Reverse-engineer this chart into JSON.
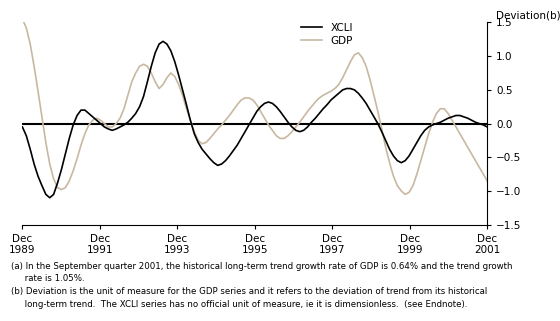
{
  "ylabel": "Deviation(b)",
  "footnote_a": "(a) In the September quarter 2001, the historical long-term trend growth rate of GDP is 0.64% and the trend growth\n     rate is 1.05%.",
  "footnote_b": "(b) Deviation is the unit of measure for the GDP series and it refers to the deviation of trend from its historical\n     long-term trend.  The XCLI series has no official unit of measure, ie it is dimensionless.  (see Endnote).",
  "ylim": [
    -1.5,
    1.5
  ],
  "xcli_color": "#000000",
  "gdp_color": "#c8b8a2",
  "background_color": "#ffffff",
  "xcli_data": [
    -0.05,
    -0.18,
    -0.38,
    -0.6,
    -0.78,
    -0.92,
    -1.05,
    -1.1,
    -1.05,
    -0.88,
    -0.68,
    -0.45,
    -0.22,
    -0.02,
    0.12,
    0.2,
    0.2,
    0.15,
    0.1,
    0.05,
    0.0,
    -0.05,
    -0.08,
    -0.1,
    -0.08,
    -0.05,
    -0.02,
    0.02,
    0.08,
    0.15,
    0.25,
    0.4,
    0.62,
    0.85,
    1.05,
    1.18,
    1.22,
    1.18,
    1.08,
    0.92,
    0.72,
    0.5,
    0.28,
    0.05,
    -0.15,
    -0.28,
    -0.38,
    -0.45,
    -0.52,
    -0.58,
    -0.62,
    -0.6,
    -0.55,
    -0.48,
    -0.4,
    -0.32,
    -0.22,
    -0.12,
    -0.02,
    0.08,
    0.18,
    0.25,
    0.3,
    0.32,
    0.3,
    0.25,
    0.18,
    0.1,
    0.02,
    -0.05,
    -0.1,
    -0.12,
    -0.1,
    -0.05,
    0.02,
    0.08,
    0.15,
    0.22,
    0.28,
    0.35,
    0.4,
    0.45,
    0.5,
    0.52,
    0.52,
    0.5,
    0.45,
    0.38,
    0.3,
    0.2,
    0.1,
    0.0,
    -0.12,
    -0.25,
    -0.38,
    -0.48,
    -0.55,
    -0.58,
    -0.55,
    -0.48,
    -0.38,
    -0.28,
    -0.18,
    -0.1,
    -0.05,
    -0.02,
    0.0,
    0.02,
    0.05,
    0.08,
    0.1,
    0.12,
    0.12,
    0.1,
    0.08,
    0.05,
    0.02,
    0.0,
    -0.02,
    -0.05
  ],
  "gdp_data": [
    1.55,
    1.42,
    1.18,
    0.85,
    0.48,
    0.1,
    -0.28,
    -0.6,
    -0.82,
    -0.95,
    -0.98,
    -0.95,
    -0.85,
    -0.7,
    -0.52,
    -0.32,
    -0.15,
    -0.02,
    0.05,
    0.08,
    0.05,
    0.0,
    -0.05,
    -0.05,
    0.0,
    0.08,
    0.22,
    0.42,
    0.62,
    0.75,
    0.85,
    0.88,
    0.85,
    0.75,
    0.62,
    0.52,
    0.58,
    0.68,
    0.75,
    0.7,
    0.58,
    0.42,
    0.22,
    0.05,
    -0.12,
    -0.25,
    -0.3,
    -0.28,
    -0.22,
    -0.15,
    -0.08,
    -0.02,
    0.05,
    0.12,
    0.2,
    0.28,
    0.35,
    0.38,
    0.38,
    0.35,
    0.28,
    0.18,
    0.08,
    -0.02,
    -0.1,
    -0.18,
    -0.22,
    -0.22,
    -0.18,
    -0.12,
    -0.05,
    0.02,
    0.1,
    0.18,
    0.25,
    0.32,
    0.38,
    0.42,
    0.45,
    0.48,
    0.52,
    0.58,
    0.68,
    0.8,
    0.92,
    1.02,
    1.05,
    0.98,
    0.85,
    0.65,
    0.42,
    0.18,
    -0.08,
    -0.35,
    -0.58,
    -0.78,
    -0.92,
    -1.0,
    -1.05,
    -1.02,
    -0.92,
    -0.75,
    -0.55,
    -0.35,
    -0.15,
    0.02,
    0.15,
    0.22,
    0.22,
    0.15,
    0.05,
    -0.05,
    -0.15,
    -0.25,
    -0.35,
    -0.45,
    -0.55,
    -0.65,
    -0.75,
    -0.85
  ],
  "x_tick_labels": [
    "Dec\n1989",
    "Dec\n1991",
    "Dec\n1993",
    "Dec\n1995",
    "Dec\n1997",
    "Dec\n1999",
    "Dec\n2001"
  ],
  "x_tick_positions": [
    0,
    8,
    16,
    24,
    32,
    40,
    48
  ]
}
